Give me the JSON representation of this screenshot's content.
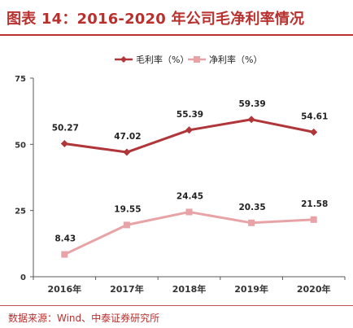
{
  "header": {
    "title": "图表 14：2016-2020 年公司毛净利率情况"
  },
  "footer": {
    "source": "数据来源：Wind、中泰证券研究所"
  },
  "colors": {
    "title": "#b8312f",
    "gross_series": "#b0363a",
    "net_series": "#e8a3a6",
    "axis": "#595959"
  },
  "chart_data": {
    "type": "line",
    "x": [
      "2016年",
      "2017年",
      "2018年",
      "2019年",
      "2020年"
    ],
    "series": [
      {
        "name": "毛利率（%）",
        "values": [
          50.27,
          47.02,
          55.39,
          59.39,
          54.61
        ],
        "labels": [
          "50.27",
          "47.02",
          "55.39",
          "59.39",
          "54.61"
        ],
        "marker": "diamond"
      },
      {
        "name": "净利率（%）",
        "values": [
          8.43,
          19.55,
          24.45,
          20.35,
          21.58
        ],
        "labels": [
          "8.43",
          "19.55",
          "24.45",
          "20.35",
          "21.58"
        ],
        "marker": "square"
      }
    ],
    "ylim": [
      0,
      75
    ],
    "yticks": [
      "0",
      "25",
      "50",
      "75"
    ],
    "grid": false,
    "legend": "top-center"
  }
}
